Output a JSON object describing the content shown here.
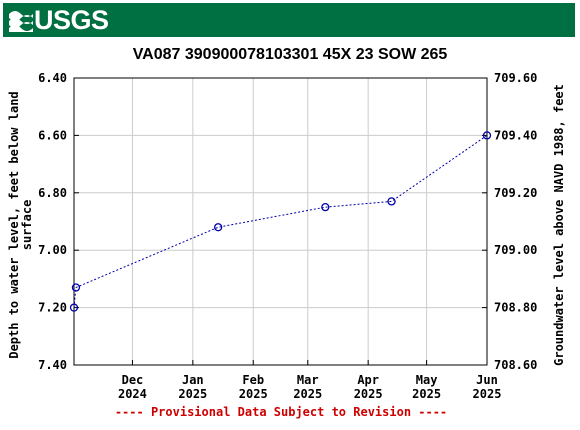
{
  "banner": {
    "logo_text": "USGS",
    "color": "#006f41"
  },
  "chart_data": {
    "type": "line",
    "title": "VA087 390900078103301 45X 23 SOW 265",
    "ylabel_left": [
      "Depth to water level, feet below land",
      "surface"
    ],
    "ylabel_right": "Groundwater level above NAVD 1988, feet",
    "left_axis": {
      "min": 6.4,
      "max": 7.4,
      "inverted": true,
      "ticks": [
        "6.40",
        "6.60",
        "6.80",
        "7.00",
        "7.20",
        "7.40"
      ]
    },
    "right_axis": {
      "min": 708.6,
      "max": 709.6,
      "ticks": [
        "709.60",
        "709.40",
        "709.20",
        "709.00",
        "708.80",
        "708.60"
      ]
    },
    "x_axis": {
      "start": "2024-11-01",
      "end": "2025-06-01",
      "ticks": [
        {
          "date": "2024-12-01",
          "month": "Dec",
          "year": "2024"
        },
        {
          "date": "2025-01-01",
          "month": "Jan",
          "year": "2025"
        },
        {
          "date": "2025-02-01",
          "month": "Feb",
          "year": "2025"
        },
        {
          "date": "2025-03-01",
          "month": "Mar",
          "year": "2025"
        },
        {
          "date": "2025-04-01",
          "month": "Apr",
          "year": "2025"
        },
        {
          "date": "2025-05-01",
          "month": "May",
          "year": "2025"
        },
        {
          "date": "2025-06-01",
          "month": "Jun",
          "year": "2025"
        }
      ]
    },
    "series": [
      {
        "color": "#0000aa",
        "points": [
          {
            "date": "2024-11-01",
            "depth": 7.2
          },
          {
            "date": "2024-11-02",
            "depth": 7.13
          },
          {
            "date": "2025-01-14",
            "depth": 6.92
          },
          {
            "date": "2025-03-10",
            "depth": 6.85
          },
          {
            "date": "2025-04-13",
            "depth": 6.83
          },
          {
            "date": "2025-06-01",
            "depth": 6.6
          }
        ]
      }
    ],
    "grid": true,
    "footer": "---- Provisional Data Subject to Revision ----",
    "footer_color": "#cc0000"
  }
}
